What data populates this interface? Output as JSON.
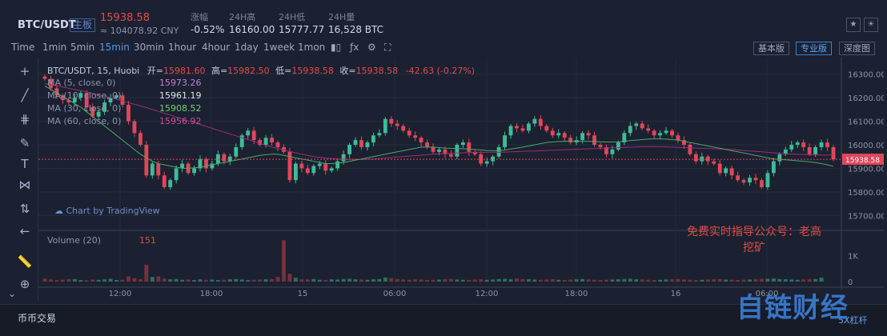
{
  "header": {
    "pair": "BTC/USDT",
    "board": "主板",
    "price": "15938.58",
    "cny": "≈ 104078.92 CNY",
    "change_label": "涨幅",
    "change_value": "-0.52%",
    "high_label": "24H高",
    "high_value": "16160.00",
    "low_label": "24H低",
    "low_value": "15777.77",
    "vol_label": "24H量",
    "vol_value": "16,528 BTC"
  },
  "timeframes": [
    "Time",
    "1min",
    "5min",
    "15min",
    "30min",
    "1hour",
    "4hour",
    "1day",
    "1week",
    "1mon"
  ],
  "active_timeframe": "15min",
  "views": [
    "基本版",
    "专业版",
    "深度图"
  ],
  "active_view": "专业版",
  "legend": {
    "symbol_line": "BTC/USDT, 15, Huobi",
    "open_label": "开=",
    "open_value": "15981.60",
    "high_label": "高=",
    "high_value": "15982.50",
    "low_label": "低=",
    "low_value": "15938.58",
    "close_label": "收=",
    "close_value": "15938.58",
    "change": "-42.63 (-0.27%)",
    "ma": [
      {
        "label": "MA (5, close, 0)",
        "value": "15973.26",
        "color": "#c77bd9"
      },
      {
        "label": "MA (10, close, 0)",
        "value": "15961.19",
        "color": "#e0e3f0"
      },
      {
        "label": "MA (30, close, 0)",
        "value": "15908.52",
        "color": "#6fd26a"
      },
      {
        "label": "MA (60, close, 0)",
        "value": "15956.92",
        "color": "#d648a8"
      }
    ],
    "volume_label": "Volume (20)",
    "volume_value": "151"
  },
  "watermark_tv": "Chart by TradingView",
  "annotation": "免费实时指导公众号：老高挖矿",
  "bottom": {
    "tab": "币币交易",
    "leverage": "5X杠杆"
  },
  "site_watermark": "自链财经",
  "chart_data": {
    "type": "candlestick",
    "price_axis_ticks": [
      "16300.00",
      "16200.00",
      "16100.00",
      "16000.00",
      "15900.00",
      "15800.00",
      "15700.00"
    ],
    "current_price_tag": "15938.58",
    "volume_axis_ticks": [
      "1K",
      "0"
    ],
    "time_axis_ticks": [
      "12:00",
      "18:00",
      "15",
      "06:00",
      "12:00",
      "18:00",
      "16",
      "06:00"
    ],
    "ylim": [
      15650,
      16350
    ],
    "volume_ylim": [
      0,
      1700
    ],
    "close_prices": [
      16280,
      16240,
      16210,
      16190,
      16180,
      16200,
      16220,
      16160,
      16120,
      16140,
      16180,
      16200,
      16210,
      16170,
      16100,
      16050,
      16000,
      15870,
      15920,
      15870,
      15820,
      15850,
      15900,
      15920,
      15880,
      15900,
      15940,
      15900,
      15920,
      15960,
      15930,
      15950,
      15990,
      16040,
      16060,
      16020,
      16000,
      16030,
      16010,
      15990,
      15970,
      15850,
      15920,
      15900,
      15880,
      15910,
      15920,
      15890,
      15900,
      15930,
      15960,
      16000,
      16020,
      15990,
      16010,
      16040,
      16050,
      16110,
      16090,
      16080,
      16060,
      16040,
      16030,
      16010,
      15990,
      15970,
      15980,
      15960,
      15950,
      16000,
      16010,
      15970,
      15960,
      15920,
      15930,
      15950,
      15990,
      16040,
      16080,
      16070,
      16060,
      16090,
      16110,
      16080,
      16060,
      16040,
      16050,
      16030,
      16010,
      16020,
      16050,
      16040,
      16000,
      15990,
      15960,
      15980,
      16010,
      16050,
      16080,
      16090,
      16070,
      16060,
      16040,
      16050,
      16060,
      16040,
      16020,
      16000,
      15960,
      15930,
      15950,
      15930,
      15920,
      15880,
      15900,
      15870,
      15850,
      15840,
      15860,
      15850,
      15820,
      15880,
      15930,
      15960,
      15980,
      16000,
      16010,
      15990,
      15960,
      15990,
      16010,
      15990,
      15938
    ],
    "volumes": [
      120,
      80,
      60,
      70,
      90,
      100,
      60,
      50,
      80,
      70,
      90,
      110,
      60,
      70,
      200,
      130,
      90,
      650,
      180,
      200,
      120,
      90,
      100,
      70,
      80,
      60,
      90,
      70,
      80,
      60,
      70,
      90,
      100,
      80,
      60,
      70,
      80,
      90,
      100,
      180,
      1600,
      300,
      150,
      90,
      80,
      100,
      70,
      60,
      90,
      80,
      100,
      110,
      90,
      80,
      70,
      90,
      100,
      160,
      130,
      100,
      80,
      70,
      90,
      80,
      60,
      70,
      80,
      90,
      100,
      80,
      70,
      60,
      80,
      90,
      70,
      80,
      100,
      110,
      90,
      120,
      100,
      90,
      80,
      70,
      80,
      90,
      70,
      60,
      80,
      90,
      100,
      80,
      70,
      60,
      70,
      80,
      90,
      100,
      110,
      90,
      80,
      70,
      60,
      70,
      80,
      90,
      100,
      80,
      70,
      60,
      70,
      80,
      90,
      100,
      80,
      70,
      60,
      70,
      80,
      90,
      100,
      110,
      120,
      100,
      90,
      80,
      70,
      80,
      90,
      100,
      151
    ],
    "ma30": [
      16250,
      16235,
      16220,
      16205,
      16190,
      16175,
      16160,
      16140,
      16120,
      16100,
      16080,
      16060,
      16040,
      16020,
      16000,
      15980,
      15960,
      15945,
      15930,
      15920,
      15915,
      15910,
      15905,
      15900,
      15900,
      15902,
      15905,
      15910,
      15915,
      15920,
      15925,
      15930,
      15935,
      15940,
      15945,
      15950,
      15955,
      15958,
      15960,
      15960,
      15955,
      15950,
      15945,
      15940,
      15935,
      15930,
      15925,
      15920,
      15920,
      15922,
      15925,
      15930,
      15935,
      15940,
      15945,
      15950,
      15955,
      15960,
      15965,
      15970,
      15975,
      15980,
      15985,
      15990,
      15990,
      15990,
      15988,
      15986,
      15985,
      15984,
      15983,
      15982,
      15980,
      15978,
      15976,
      15975,
      15975,
      15978,
      15982,
      15986,
      15990,
      15995,
      16000,
      16005,
      16010,
      16012,
      16014,
      16015,
      16015,
      16015,
      16015,
      16015,
      16014,
      16013,
      16012,
      16012,
      16013,
      16015,
      16018,
      16020,
      16022,
      16024,
      16025,
      16025,
      16024,
      16022,
      16020,
      16015,
      16010,
      16005,
      16000,
      15995,
      15990,
      15985,
      15980,
      15975,
      15970,
      15965,
      15960,
      15955,
      15950,
      15945,
      15940,
      15938,
      15936,
      15934,
      15932,
      15930,
      15928,
      15925,
      15920,
      15915,
      15909
    ],
    "ma60": [
      16260,
      16255,
      16250,
      16245,
      16240,
      16235,
      16230,
      16224,
      16218,
      16212,
      16206,
      16200,
      16193,
      16186,
      16179,
      16172,
      16165,
      16158,
      16150,
      16142,
      16134,
      16126,
      16118,
      16110,
      16102,
      16094,
      16086,
      16078,
      16070,
      16062,
      16054,
      16046,
      16038,
      16030,
      16022,
      16014,
      16006,
      15998,
      15990,
      15984,
      15978,
      15972,
      15966,
      15960,
      15955,
      15950,
      15947,
      15944,
      15942,
      15940,
      15939,
      15938,
      15938,
      15938,
      15939,
      15940,
      15942,
      15944,
      15946,
      15948,
      15950,
      15952,
      15954,
      15956,
      15958,
      15960,
      15962,
      15963,
      15964,
      15965,
      15966,
      15967,
      15968,
      15968,
      15968,
      15968,
      15968,
      15969,
      15970,
      15971,
      15972,
      15973,
      15974,
      15975,
      15976,
      15977,
      15978,
      15979,
      15980,
      15981,
      15982,
      15983,
      15984,
      15985,
      15986,
      15987,
      15988,
      15989,
      15990,
      15991,
      15992,
      15992,
      15992,
      15992,
      15991,
      15990,
      15989,
      15988,
      15987,
      15986,
      15985,
      15984,
      15983,
      15982,
      15981,
      15980,
      15978,
      15976,
      15974,
      15972,
      15970,
      15968,
      15966,
      15964,
      15962,
      15961,
      15960,
      15959,
      15958,
      15957,
      15957,
      15957,
      15957
    ]
  }
}
